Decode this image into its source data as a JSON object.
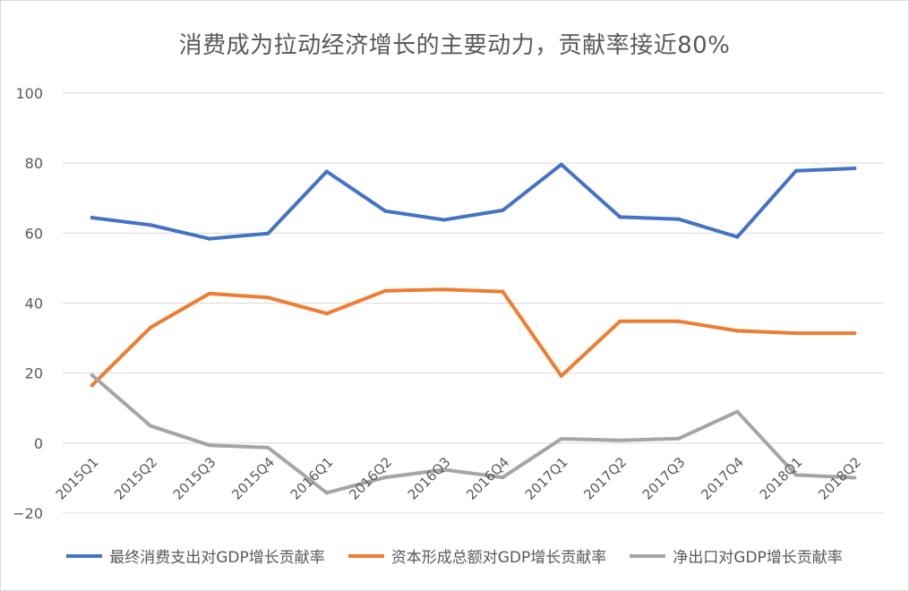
{
  "chart_data": {
    "type": "line",
    "title": "消费成为拉动经济增长的主要动力，贡献率接近80%",
    "xlabel": "",
    "ylabel": "",
    "categories": [
      "2015Q1",
      "2015Q2",
      "2015Q3",
      "2015Q4",
      "2016Q1",
      "2016Q2",
      "2016Q3",
      "2016Q4",
      "2017Q1",
      "2017Q2",
      "2017Q3",
      "2017Q4",
      "2018Q1",
      "2018Q2"
    ],
    "ylim": [
      -20,
      100
    ],
    "yticks": [
      "100",
      "80",
      "60",
      "40",
      "20",
      "0",
      "−20"
    ],
    "grid": true,
    "legend_position": "bottom",
    "series": [
      {
        "name": "最终消费支出对GDP增长贡献率",
        "color": "#4472c4",
        "values": [
          64.4,
          62.3,
          58.4,
          59.9,
          77.6,
          66.3,
          63.8,
          66.5,
          79.6,
          64.6,
          64.0,
          58.9,
          77.8,
          78.5
        ]
      },
      {
        "name": "资本形成总额对GDP增长贡献率",
        "color": "#ed7d31",
        "values": [
          16.5,
          33.1,
          42.7,
          41.6,
          37.0,
          43.5,
          43.9,
          43.3,
          19.2,
          34.8,
          34.8,
          32.1,
          31.4,
          31.4
        ]
      },
      {
        "name": "净出口对GDP增长贡献率",
        "color": "#a5a5a5",
        "values": [
          19.4,
          4.9,
          -0.6,
          -1.3,
          -14.2,
          -9.8,
          -7.6,
          -9.8,
          1.2,
          0.8,
          1.3,
          9.0,
          -9.1,
          -9.9
        ]
      }
    ]
  }
}
